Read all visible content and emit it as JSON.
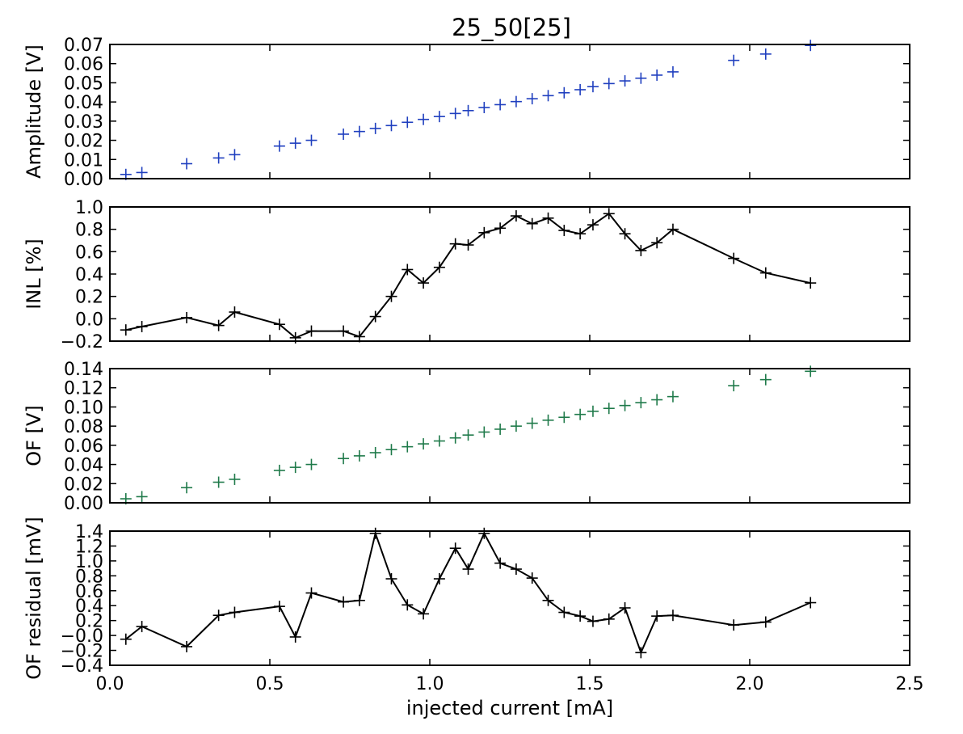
{
  "chart_data": {
    "title": "25_50[25]",
    "x": [
      0.05,
      0.1,
      0.24,
      0.34,
      0.39,
      0.53,
      0.58,
      0.63,
      0.73,
      0.78,
      0.83,
      0.88,
      0.93,
      0.98,
      1.03,
      1.08,
      1.12,
      1.17,
      1.22,
      1.27,
      1.32,
      1.37,
      1.42,
      1.47,
      1.51,
      1.56,
      1.61,
      1.66,
      1.71,
      1.76,
      1.95,
      2.05,
      2.19
    ],
    "xlabel": "injected current [mA]",
    "xlim": [
      0.0,
      2.5
    ],
    "x_ticks": [
      0.0,
      0.5,
      1.0,
      1.5,
      2.0,
      2.5
    ],
    "x_tick_labels": [
      "0.0",
      "0.5",
      "1.0",
      "1.5",
      "2.0",
      "2.5"
    ],
    "panels": [
      {
        "type": "scatter",
        "ylabel": "Amplitude [V]",
        "ylim": [
          0.0,
          0.07
        ],
        "y_ticks": [
          0.0,
          0.01,
          0.02,
          0.03,
          0.04,
          0.05,
          0.06,
          0.07
        ],
        "y_tick_labels": [
          "0.00",
          "0.01",
          "0.02",
          "0.03",
          "0.04",
          "0.05",
          "0.06",
          "0.07"
        ],
        "color": "#1f3fbf",
        "line": false,
        "y": [
          0.0022,
          0.0032,
          0.0078,
          0.0108,
          0.0125,
          0.017,
          0.0185,
          0.02,
          0.0232,
          0.0246,
          0.0262,
          0.0277,
          0.0294,
          0.0309,
          0.0324,
          0.034,
          0.0355,
          0.0371,
          0.0386,
          0.0402,
          0.0417,
          0.0433,
          0.0448,
          0.0464,
          0.048,
          0.0496,
          0.051,
          0.0524,
          0.054,
          0.0557,
          0.0617,
          0.065,
          0.0695
        ]
      },
      {
        "type": "line",
        "ylabel": "INL [%]",
        "ylim": [
          -0.2,
          1.0
        ],
        "y_ticks": [
          -0.2,
          0.0,
          0.2,
          0.4,
          0.6,
          0.8,
          1.0
        ],
        "y_tick_labels": [
          "−0.2",
          "0.0",
          "0.2",
          "0.4",
          "0.6",
          "0.8",
          "1.0"
        ],
        "color": "#000000",
        "line": true,
        "y": [
          -0.1,
          -0.07,
          0.01,
          -0.06,
          0.06,
          -0.05,
          -0.17,
          -0.11,
          -0.11,
          -0.16,
          0.02,
          0.2,
          0.44,
          0.32,
          0.46,
          0.67,
          0.66,
          0.77,
          0.81,
          0.92,
          0.85,
          0.9,
          0.79,
          0.76,
          0.84,
          0.94,
          0.76,
          0.61,
          0.68,
          0.8,
          0.54,
          0.41,
          0.32
        ]
      },
      {
        "type": "scatter",
        "ylabel": "OF [V]",
        "ylim": [
          0.0,
          0.14
        ],
        "y_ticks": [
          0.0,
          0.02,
          0.04,
          0.06,
          0.08,
          0.1,
          0.12,
          0.14
        ],
        "y_tick_labels": [
          "0.00",
          "0.02",
          "0.04",
          "0.06",
          "0.08",
          "0.10",
          "0.12",
          "0.14"
        ],
        "color": "#1f7a4a",
        "line": false,
        "y": [
          0.0042,
          0.0064,
          0.0158,
          0.0215,
          0.0245,
          0.0338,
          0.037,
          0.04,
          0.0462,
          0.049,
          0.0523,
          0.0555,
          0.0585,
          0.0615,
          0.0645,
          0.0677,
          0.0707,
          0.0738,
          0.0768,
          0.08,
          0.083,
          0.0862,
          0.0892,
          0.0922,
          0.0955,
          0.0985,
          0.1015,
          0.1045,
          0.1075,
          0.1108,
          0.1222,
          0.1285,
          0.1372
        ]
      },
      {
        "type": "line",
        "ylabel": "OF residual [mV]",
        "ylim": [
          -0.4,
          1.4
        ],
        "y_ticks": [
          -0.4,
          -0.2,
          0.0,
          0.2,
          0.4,
          0.6,
          0.8,
          1.0,
          1.2,
          1.4
        ],
        "y_tick_labels": [
          "−0.4",
          "−0.2",
          "−0.0",
          "0.2",
          "0.4",
          "0.6",
          "0.8",
          "1.0",
          "1.2",
          "1.4"
        ],
        "color": "#000000",
        "line": true,
        "y": [
          -0.05,
          0.12,
          -0.15,
          0.27,
          0.31,
          0.39,
          -0.02,
          0.57,
          0.45,
          0.47,
          1.37,
          0.76,
          0.41,
          0.29,
          0.76,
          1.17,
          0.89,
          1.37,
          0.97,
          0.89,
          0.77,
          0.47,
          0.31,
          0.26,
          0.19,
          0.22,
          0.37,
          -0.23,
          0.26,
          0.27,
          0.14,
          0.18,
          0.44
        ]
      }
    ]
  }
}
